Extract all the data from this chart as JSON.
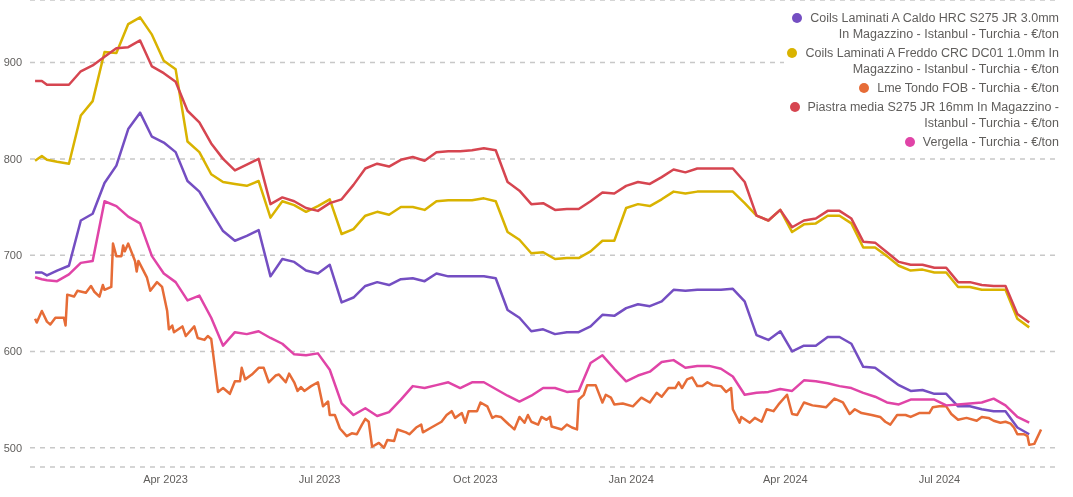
{
  "chart_data": {
    "type": "line",
    "legend": "top right",
    "grid": "y",
    "line_style": "solid",
    "xlim": [
      "2023-01-11",
      "2024-09-09"
    ],
    "xticks": [
      {
        "value": "2023-04-01",
        "label": "Apr 2023"
      },
      {
        "value": "2023-07-01",
        "label": "Jul 2023"
      },
      {
        "value": "2023-10-01",
        "label": "Oct 2023"
      },
      {
        "value": "2024-01-01",
        "label": "Jan 2024"
      },
      {
        "value": "2024-04-01",
        "label": "Apr 2024"
      },
      {
        "value": "2024-07-01",
        "label": "Jul 2024"
      }
    ],
    "ylim": [
      480,
      965
    ],
    "yticks": [
      500,
      600,
      700,
      800,
      900
    ],
    "x": [
      "2023-01-14",
      "2023-01-18",
      "2023-01-21",
      "2023-01-27",
      "2023-02-03",
      "2023-02-10",
      "2023-02-17",
      "2023-02-24",
      "2023-03-03",
      "2023-03-10",
      "2023-03-17",
      "2023-03-24",
      "2023-03-31",
      "2023-04-07",
      "2023-04-14",
      "2023-04-21",
      "2023-04-28",
      "2023-05-05",
      "2023-05-12",
      "2023-05-19",
      "2023-05-26",
      "2023-06-02",
      "2023-06-09",
      "2023-06-16",
      "2023-06-23",
      "2023-06-30",
      "2023-07-07",
      "2023-07-14",
      "2023-07-21",
      "2023-07-28",
      "2023-08-04",
      "2023-08-11",
      "2023-08-18",
      "2023-08-25",
      "2023-09-01",
      "2023-09-08",
      "2023-09-15",
      "2023-09-22",
      "2023-09-29",
      "2023-10-06",
      "2023-10-13",
      "2023-10-20",
      "2023-10-27",
      "2023-11-03",
      "2023-11-10",
      "2023-11-17",
      "2023-11-24",
      "2023-12-01",
      "2023-12-08",
      "2023-12-15",
      "2023-12-22",
      "2023-12-29",
      "2024-01-05",
      "2024-01-12",
      "2024-01-19",
      "2024-01-26",
      "2024-02-02",
      "2024-02-09",
      "2024-02-16",
      "2024-02-23",
      "2024-03-01",
      "2024-03-08",
      "2024-03-15",
      "2024-03-22",
      "2024-03-29",
      "2024-04-05",
      "2024-04-12",
      "2024-04-19",
      "2024-04-26",
      "2024-05-03",
      "2024-05-10",
      "2024-05-17",
      "2024-05-24",
      "2024-05-31",
      "2024-06-07",
      "2024-06-14",
      "2024-06-21",
      "2024-06-28",
      "2024-07-05",
      "2024-07-12",
      "2024-07-19",
      "2024-07-26",
      "2024-08-02",
      "2024-08-09",
      "2024-08-16",
      "2024-08-23"
    ],
    "series": [
      {
        "name": "Coils Laminati A Caldo HRC S275 JR 3.0mm In Magazzino - Istanbul - Turchia - €/ton",
        "color": "#744ec2",
        "values": [
          682,
          682,
          679,
          684,
          689,
          736,
          743,
          775,
          793,
          831,
          848,
          823,
          817,
          807,
          777,
          766,
          745,
          725,
          715,
          720,
          726,
          678,
          696,
          693,
          684,
          681,
          690,
          651,
          656,
          668,
          672,
          669,
          675,
          676,
          673,
          681,
          678,
          678,
          678,
          678,
          676,
          643,
          635,
          621,
          623,
          618,
          620,
          620,
          626,
          638,
          637,
          645,
          649,
          647,
          652,
          664,
          663,
          664,
          664,
          664,
          665,
          652,
          617,
          612,
          621,
          600,
          606,
          606,
          615,
          615,
          608,
          584,
          583,
          574,
          565,
          559,
          560,
          556,
          556,
          543,
          543,
          540,
          538,
          538,
          521,
          514
        ]
      },
      {
        "name": "Coils Laminati A Freddo CRC DC01 1.0mm In Magazzino - Istanbul - Turchia - €/ton",
        "color": "#d9b300",
        "values": [
          798,
          803,
          799,
          797,
          795,
          845,
          860,
          911,
          910,
          940,
          947,
          929,
          902,
          893,
          818,
          807,
          784,
          776,
          774,
          772,
          777,
          739,
          756,
          752,
          745,
          751,
          758,
          722,
          727,
          741,
          745,
          742,
          750,
          750,
          747,
          756,
          757,
          757,
          757,
          759,
          756,
          724,
          716,
          702,
          703,
          696,
          697,
          697,
          704,
          715,
          715,
          749,
          753,
          751,
          758,
          766,
          764,
          766,
          766,
          766,
          766,
          754,
          741,
          736,
          747,
          724,
          732,
          733,
          741,
          741,
          733,
          708,
          708,
          699,
          689,
          684,
          685,
          682,
          682,
          667,
          667,
          664,
          664,
          664,
          634,
          625
        ]
      },
      {
        "name": "Lme Tondo FOB - Turchia - €/ton",
        "color": "#e66c37",
        "x": [
          "2023-01-14",
          "2023-01-15",
          "2023-01-18",
          "2023-01-21",
          "2023-01-23",
          "2023-01-26",
          "2023-01-31",
          "2023-02-01",
          "2023-02-02",
          "2023-02-06",
          "2023-02-08",
          "2023-02-13",
          "2023-02-16",
          "2023-02-18",
          "2023-02-21",
          "2023-02-23",
          "2023-02-24",
          "2023-02-28",
          "2023-03-01",
          "2023-03-03",
          "2023-03-06",
          "2023-03-07",
          "2023-03-08",
          "2023-03-10",
          "2023-03-14",
          "2023-03-15",
          "2023-03-16",
          "2023-03-21",
          "2023-03-23",
          "2023-03-27",
          "2023-03-30",
          "2023-04-02",
          "2023-04-03",
          "2023-04-05",
          "2023-04-06",
          "2023-04-11",
          "2023-04-13",
          "2023-04-18",
          "2023-04-20",
          "2023-04-24",
          "2023-04-26",
          "2023-04-28",
          "2023-05-02",
          "2023-05-05",
          "2023-05-09",
          "2023-05-12",
          "2023-05-15",
          "2023-05-16",
          "2023-05-18",
          "2023-05-22",
          "2023-05-26",
          "2023-05-29",
          "2023-06-01",
          "2023-06-05",
          "2023-06-07",
          "2023-06-09",
          "2023-06-11",
          "2023-06-13",
          "2023-06-16",
          "2023-06-18",
          "2023-06-20",
          "2023-06-22",
          "2023-06-26",
          "2023-06-30",
          "2023-07-03",
          "2023-07-06",
          "2023-07-07",
          "2023-07-10",
          "2023-07-13",
          "2023-07-17",
          "2023-07-20",
          "2023-07-23",
          "2023-07-26",
          "2023-07-28",
          "2023-07-30",
          "2023-08-01",
          "2023-08-05",
          "2023-08-08",
          "2023-08-10",
          "2023-08-14",
          "2023-08-16",
          "2023-08-21",
          "2023-08-23",
          "2023-08-27",
          "2023-08-30",
          "2023-08-31",
          "2023-09-05",
          "2023-09-11",
          "2023-09-14",
          "2023-09-17",
          "2023-09-19",
          "2023-09-23",
          "2023-09-25",
          "2023-09-27",
          "2023-10-02",
          "2023-10-04",
          "2023-10-08",
          "2023-10-11",
          "2023-10-13",
          "2023-10-16",
          "2023-10-19",
          "2023-10-24",
          "2023-10-27",
          "2023-10-30",
          "2023-11-01",
          "2023-11-03",
          "2023-11-07",
          "2023-11-09",
          "2023-11-12",
          "2023-11-14",
          "2023-11-15",
          "2023-11-21",
          "2023-11-24",
          "2023-11-27",
          "2023-11-30",
          "2023-12-01",
          "2023-12-04",
          "2023-12-06",
          "2023-12-11",
          "2023-12-15",
          "2023-12-17",
          "2023-12-20",
          "2023-12-22",
          "2023-12-27",
          "2024-01-02",
          "2024-01-07",
          "2024-01-12",
          "2024-01-16",
          "2024-01-19",
          "2024-01-23",
          "2024-01-27",
          "2024-01-29",
          "2024-01-31",
          "2024-02-03",
          "2024-02-06",
          "2024-02-09",
          "2024-02-12",
          "2024-02-15",
          "2024-02-18",
          "2024-02-23",
          "2024-02-26",
          "2024-02-29",
          "2024-03-01",
          "2024-03-05",
          "2024-03-06",
          "2024-03-11",
          "2024-03-14",
          "2024-03-18",
          "2024-03-21",
          "2024-03-25",
          "2024-03-28",
          "2024-04-02",
          "2024-04-05",
          "2024-04-08",
          "2024-04-12",
          "2024-04-17",
          "2024-04-21",
          "2024-04-25",
          "2024-04-30",
          "2024-05-05",
          "2024-05-09",
          "2024-05-12",
          "2024-05-16",
          "2024-05-22",
          "2024-05-27",
          "2024-05-30",
          "2024-06-02",
          "2024-06-06",
          "2024-06-11",
          "2024-06-14",
          "2024-06-19",
          "2024-06-25",
          "2024-06-27",
          "2024-07-01",
          "2024-07-05",
          "2024-07-08",
          "2024-07-12",
          "2024-07-17",
          "2024-07-23",
          "2024-07-26",
          "2024-07-30",
          "2024-08-02",
          "2024-08-06",
          "2024-08-09",
          "2024-08-12",
          "2024-08-14",
          "2024-08-16",
          "2024-08-20",
          "2024-08-22",
          "2024-08-23",
          "2024-08-26",
          "2024-08-30"
        ],
        "values": [
          634,
          630,
          642,
          631,
          628,
          635,
          635,
          627,
          659,
          657,
          663,
          661,
          668,
          662,
          657,
          669,
          664,
          667,
          712,
          699,
          699,
          710,
          704,
          712,
          694,
          683,
          694,
          677,
          663,
          672,
          667,
          642,
          623,
          627,
          620,
          626,
          616,
          626,
          614,
          612,
          616,
          613,
          558,
          562,
          556,
          569,
          569,
          583,
          571,
          576,
          583,
          583,
          568,
          575,
          576,
          572,
          568,
          577,
          568,
          559,
          563,
          559,
          564,
          568,
          543,
          548,
          534,
          534,
          520,
          512,
          515,
          514,
          524,
          530,
          527,
          501,
          505,
          500,
          508,
          507,
          519,
          516,
          514,
          521,
          524,
          516,
          521,
          527,
          534,
          538,
          531,
          536,
          526,
          538,
          538,
          547,
          543,
          531,
          533,
          532,
          527,
          519,
          532,
          526,
          534,
          527,
          524,
          532,
          529,
          532,
          522,
          519,
          524,
          521,
          519,
          550,
          555,
          565,
          565,
          547,
          555,
          552,
          545,
          546,
          543,
          552,
          547,
          557,
          553,
          562,
          562,
          568,
          562,
          571,
          573,
          564,
          564,
          568,
          565,
          564,
          558,
          562,
          540,
          526,
          532,
          526,
          531,
          527,
          540,
          538,
          545,
          555,
          535,
          534,
          547,
          544,
          543,
          542,
          551,
          547,
          535,
          540,
          536,
          534,
          532,
          527,
          524,
          534,
          534,
          532,
          536,
          536,
          542,
          543,
          543,
          535,
          529,
          531,
          528,
          532,
          531,
          528,
          526,
          527,
          525,
          521,
          514,
          514,
          512,
          503,
          504,
          519
        ]
      },
      {
        "name": "Piastra media S275 JR 16mm In Magazzino - Istanbul - Turchia - €/ton",
        "color": "#d64550",
        "values": [
          881,
          881,
          877,
          877,
          877,
          891,
          897,
          906,
          915,
          916,
          923,
          896,
          889,
          880,
          850,
          838,
          816,
          800,
          788,
          794,
          800,
          753,
          760,
          756,
          749,
          746,
          754,
          758,
          773,
          790,
          795,
          792,
          799,
          802,
          798,
          807,
          808,
          808,
          809,
          811,
          809,
          776,
          767,
          753,
          754,
          747,
          748,
          748,
          756,
          765,
          764,
          772,
          776,
          774,
          781,
          789,
          786,
          790,
          790,
          790,
          790,
          776,
          741,
          736,
          747,
          729,
          736,
          738,
          746,
          746,
          738,
          714,
          713,
          703,
          693,
          690,
          690,
          687,
          687,
          672,
          672,
          669,
          668,
          668,
          639,
          630
        ]
      },
      {
        "name": "Vergella - Turchia - €/ton",
        "color": "#e044a7",
        "values": [
          677,
          675,
          674,
          673,
          680,
          692,
          694,
          756,
          751,
          740,
          733,
          699,
          681,
          672,
          653,
          658,
          635,
          606,
          620,
          618,
          621,
          614,
          608,
          597,
          596,
          598,
          581,
          546,
          534,
          541,
          533,
          537,
          550,
          564,
          562,
          565,
          568,
          562,
          568,
          568,
          561,
          554,
          548,
          554,
          562,
          562,
          558,
          559,
          588,
          596,
          582,
          569,
          575,
          579,
          589,
          591,
          583,
          585,
          585,
          582,
          574,
          555,
          557,
          558,
          561,
          559,
          570,
          569,
          567,
          564,
          562,
          557,
          553,
          547,
          545,
          550,
          550,
          550,
          544,
          545,
          546,
          547,
          551,
          544,
          532,
          526
        ]
      }
    ]
  }
}
